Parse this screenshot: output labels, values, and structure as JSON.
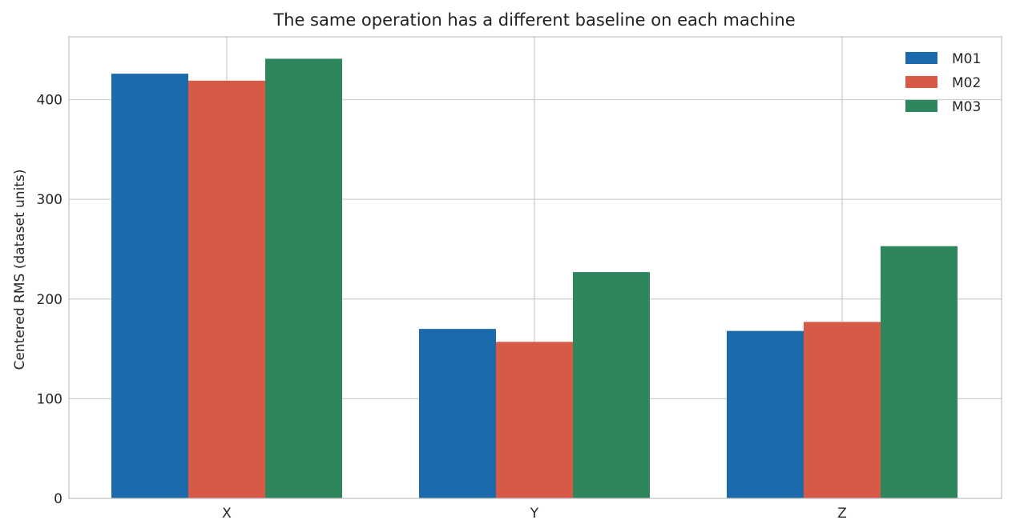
{
  "chart_data": {
    "type": "bar",
    "title": "The same operation has a different baseline on each machine",
    "xlabel": "",
    "ylabel": "Centered RMS (dataset units)",
    "categories": [
      "X",
      "Y",
      "Z"
    ],
    "series": [
      {
        "name": "M01",
        "color": "#1a6aac",
        "values": [
          426,
          170,
          168
        ]
      },
      {
        "name": "M02",
        "color": "#d65a47",
        "values": [
          419,
          157,
          177
        ]
      },
      {
        "name": "M03",
        "color": "#2e865c",
        "values": [
          441,
          227,
          253
        ]
      }
    ],
    "ylim": [
      0,
      463
    ],
    "yticks": [
      0,
      100,
      200,
      300,
      400
    ],
    "grid": true,
    "legend_position": "top-right"
  }
}
